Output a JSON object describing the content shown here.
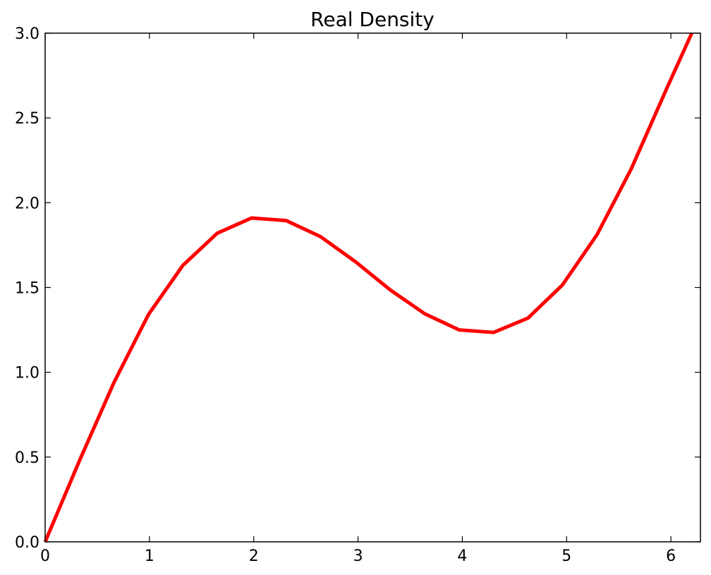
{
  "chart_data": {
    "type": "line",
    "title": "Real Density",
    "xlabel": "",
    "ylabel": "",
    "xlim": [
      0,
      6.283
    ],
    "ylim": [
      0,
      3.0
    ],
    "x_ticks": [
      0,
      1,
      2,
      3,
      4,
      5,
      6
    ],
    "x_tick_labels": [
      "0",
      "1",
      "2",
      "3",
      "4",
      "5",
      "6"
    ],
    "y_ticks": [
      0,
      0.5,
      1.0,
      1.5,
      2.0,
      2.5,
      3.0
    ],
    "y_tick_labels": [
      "0.0",
      "0.5",
      "1.0",
      "1.5",
      "2.0",
      "2.5",
      "3.0"
    ],
    "grid": false,
    "series": [
      {
        "color": "#ff0000",
        "x": [
          0,
          0.33,
          0.66,
          0.99,
          1.32,
          1.65,
          1.98,
          2.31,
          2.64,
          2.98,
          3.31,
          3.64,
          3.97,
          4.3,
          4.63,
          4.96,
          5.29,
          5.62,
          5.95,
          6.2
        ],
        "y": [
          0.0,
          0.48,
          0.94,
          1.34,
          1.63,
          1.82,
          1.91,
          1.895,
          1.8,
          1.65,
          1.485,
          1.345,
          1.25,
          1.235,
          1.32,
          1.515,
          1.81,
          2.2,
          2.66,
          3.0
        ]
      }
    ]
  }
}
